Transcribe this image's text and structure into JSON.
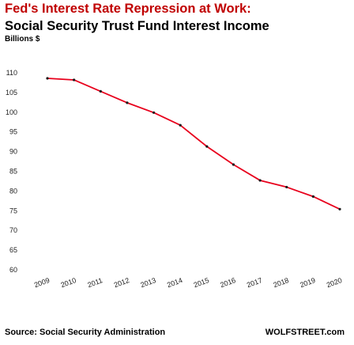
{
  "title": "Fed's Interest Rate Repression at Work:",
  "subtitle": "Social Security Trust Fund Interest Income",
  "units": "Billions $",
  "source": "Source: Social Security Administration",
  "credit": "WOLFSTREET.com",
  "colors": {
    "title": "#c00000",
    "line": "#e8001c",
    "marker": "#1a1a1a"
  },
  "chart_data": {
    "type": "line",
    "x": [
      "2009",
      "2010",
      "2011",
      "2012",
      "2013",
      "2014",
      "2015",
      "2016",
      "2017",
      "2018",
      "2019",
      "2020"
    ],
    "series": [
      {
        "values": [
          108.6,
          108.2,
          105.3,
          102.4,
          99.9,
          96.7,
          91.3,
          86.7,
          82.7,
          81.0,
          78.6,
          75.4
        ]
      }
    ],
    "ylim": [
      60,
      110
    ],
    "yticks": [
      "60",
      "65",
      "70",
      "75",
      "80",
      "85",
      "90",
      "95",
      "100",
      "105",
      "110"
    ],
    "grid": false,
    "legend": "none"
  }
}
